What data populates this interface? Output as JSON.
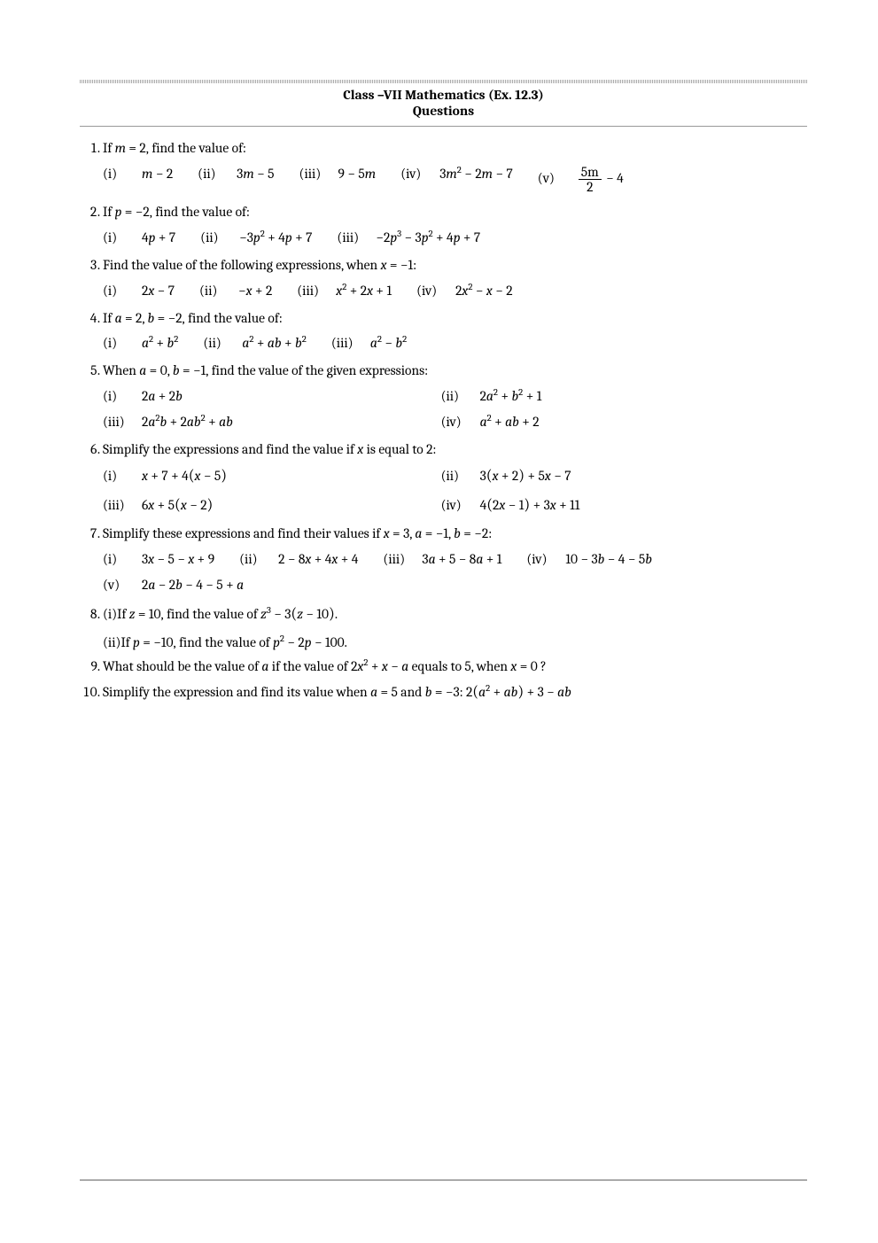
{
  "header": {
    "line1": "Class –VII Mathematics (Ex. 12.3)",
    "line2": "Questions"
  },
  "questions": [
    {
      "n": 1,
      "stem_pre": "If ",
      "stem_cond": "m = 2,",
      "stem_post": " find the value of:",
      "parts_layout": "row",
      "parts": [
        {
          "pn": "(i)",
          "mode": "m",
          "src": "m − 2"
        },
        {
          "pn": "(ii)",
          "mode": "m",
          "src": "3m − 5"
        },
        {
          "pn": "(iii)",
          "mode": "m",
          "src": "9 − 5m"
        },
        {
          "pn": "(iv)",
          "mode": "m",
          "src": "3m^{2} − 2m − 7"
        },
        {
          "pn": "(v)",
          "mode": "frac",
          "num": "5m",
          "den": "2",
          "tail": " − 4"
        }
      ]
    },
    {
      "n": 2,
      "stem_pre": "If ",
      "stem_cond": "p = −2,",
      "stem_post": " find the value of:",
      "parts_layout": "row",
      "parts": [
        {
          "pn": "(i)",
          "mode": "m",
          "src": "4p + 7"
        },
        {
          "pn": "(ii)",
          "mode": "m",
          "src": "−3p^{2} + 4p + 7"
        },
        {
          "pn": "(iii)",
          "mode": "m",
          "src": "−2p^{3} − 3p^{2} + 4p + 7"
        }
      ]
    },
    {
      "n": 3,
      "stem_pre": "Find the value of the following expressions, when ",
      "stem_cond": "x = −1",
      "stem_post": ":",
      "parts_layout": "row",
      "parts": [
        {
          "pn": "(i)",
          "mode": "m",
          "src": "2x − 7"
        },
        {
          "pn": "(ii)",
          "mode": "m",
          "src": "−x + 2"
        },
        {
          "pn": "(iii)",
          "mode": "m",
          "src": "x^{2} + 2x + 1"
        },
        {
          "pn": "(iv)",
          "mode": "m",
          "src": "2x^{2} − x − 2"
        }
      ]
    },
    {
      "n": 4,
      "stem_pre": "If ",
      "stem_cond": "a = 2, b = −2,",
      "stem_post": " find the value of:",
      "parts_layout": "row",
      "parts": [
        {
          "pn": "(i)",
          "mode": "m",
          "src": "a^{2} + b^{2}"
        },
        {
          "pn": "(ii)",
          "mode": "m",
          "src": "a^{2} + ab + b^{2}"
        },
        {
          "pn": "(iii)",
          "mode": "m",
          "src": "a^{2} − b^{2}"
        }
      ]
    },
    {
      "n": 5,
      "stem_pre": "When ",
      "stem_cond": "a = 0, b = −1,",
      "stem_post": " find the value of the given expressions:",
      "parts_layout": "two-col",
      "parts": [
        {
          "pn": "(i)",
          "mode": "m",
          "src": "2a + 2b"
        },
        {
          "pn": "(ii)",
          "mode": "m",
          "src": "2a^{2} + b^{2} + 1"
        },
        {
          "pn": "(iii)",
          "mode": "m",
          "src": "2a^{2}b + 2ab^{2} + ab"
        },
        {
          "pn": "(iv)",
          "mode": "m",
          "src": "a^{2} + ab + 2"
        }
      ]
    },
    {
      "n": 6,
      "stem_pre": "Simplify the expressions and find the value if ",
      "stem_cond": "x",
      "stem_post": " is equal to 2:",
      "parts_layout": "two-col",
      "parts": [
        {
          "pn": "(i)",
          "mode": "m",
          "src": "x + 7 + 4(x − 5)"
        },
        {
          "pn": "(ii)",
          "mode": "m",
          "src": "3(x + 2) + 5x − 7"
        },
        {
          "pn": "(iii)",
          "mode": "m",
          "src": "6x + 5(x − 2)"
        },
        {
          "pn": "(iv)",
          "mode": "m",
          "src": "4(2x − 1) + 3x + 11"
        }
      ]
    },
    {
      "n": 7,
      "stem_pre": "Simplify these expressions and find their values if ",
      "stem_cond": "x = 3, a = −1, b = −2",
      "stem_post": ":",
      "parts_layout": "row",
      "parts": [
        {
          "pn": "(i)",
          "mode": "m",
          "src": "3x − 5 − x + 9"
        },
        {
          "pn": "(ii)",
          "mode": "m",
          "src": "2 − 8x + 4x + 4"
        },
        {
          "pn": "(iii)",
          "mode": "m",
          "src": "3a + 5 − 8a + 1"
        },
        {
          "pn": "(iv)",
          "mode": "m",
          "src": "10 − 3b − 4 − 5b"
        },
        {
          "pn": "(v)",
          "mode": "m",
          "src": "2a − 2b − 4 − 5 + a"
        }
      ]
    },
    {
      "n": 8,
      "special": "q8",
      "sub": [
        {
          "pn": "(i)",
          "pre": "If ",
          "cond": "z = 10,",
          "mid": " find the value of ",
          "expr": "z^{3} − 3(z − 10)."
        },
        {
          "pn": "(ii)",
          "pre": "If ",
          "cond": "p = −10,",
          "mid": " find the value of ",
          "expr": "p^{2} − 2p − 100."
        }
      ]
    },
    {
      "n": 9,
      "special": "q9",
      "t1": "What should be the value of ",
      "v1": "a",
      "t2": " if the value of ",
      "v2": "2x^{2} + x − a",
      "t3": " equals to 5, when ",
      "v3": "x = 0",
      "t4": " ?"
    },
    {
      "n": 10,
      "special": "q10",
      "t1": "Simplify the expression and find its value when ",
      "v1": "a = 5",
      "t2": " and ",
      "v2": "b = −3",
      "t3": ": ",
      "v3": "2(a^{2} + ab) + 3 − ab"
    }
  ]
}
